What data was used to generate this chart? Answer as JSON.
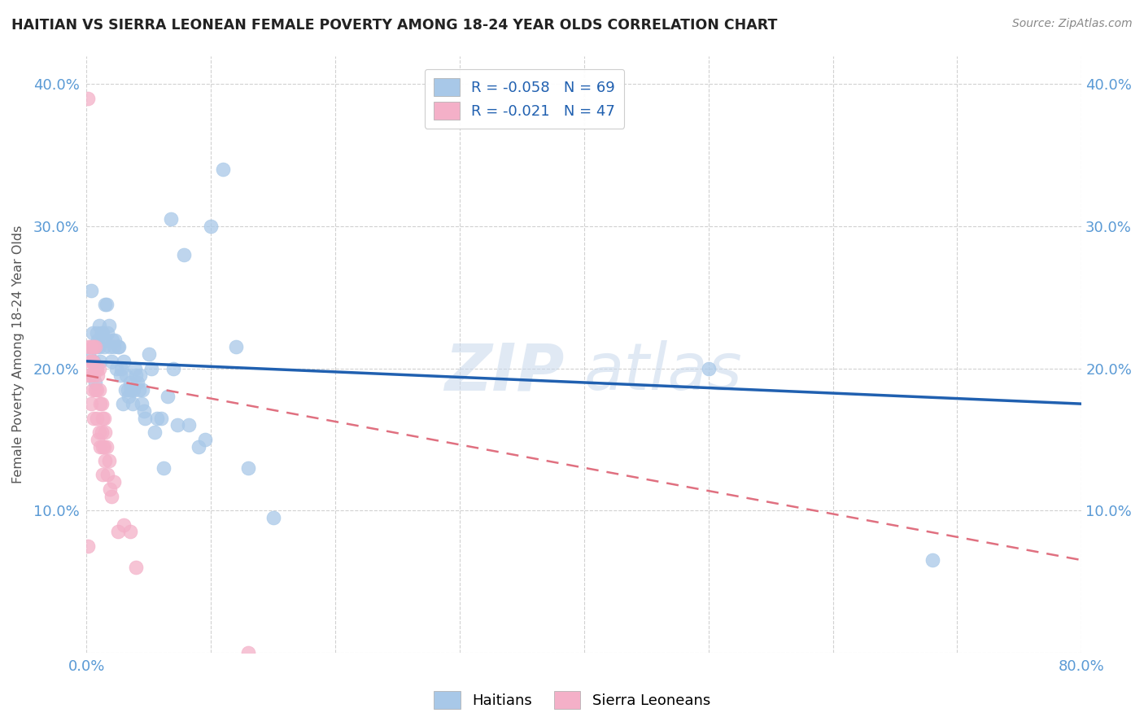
{
  "title": "HAITIAN VS SIERRA LEONEAN FEMALE POVERTY AMONG 18-24 YEAR OLDS CORRELATION CHART",
  "source": "Source: ZipAtlas.com",
  "ylabel": "Female Poverty Among 18-24 Year Olds",
  "xlim": [
    0.0,
    0.8
  ],
  "ylim": [
    0.0,
    0.42
  ],
  "x_ticks": [
    0.0,
    0.1,
    0.2,
    0.3,
    0.4,
    0.5,
    0.6,
    0.7,
    0.8
  ],
  "y_ticks": [
    0.0,
    0.1,
    0.2,
    0.3,
    0.4
  ],
  "watermark_zip": "ZIP",
  "watermark_atlas": "atlas",
  "haitians_color": "#a8c8e8",
  "sierra_color": "#f4b0c8",
  "trendline_blue": "#2060b0",
  "trendline_pink": "#e07080",
  "haitians_x": [
    0.002,
    0.004,
    0.005,
    0.006,
    0.007,
    0.008,
    0.008,
    0.009,
    0.01,
    0.01,
    0.011,
    0.012,
    0.013,
    0.014,
    0.015,
    0.015,
    0.016,
    0.017,
    0.018,
    0.019,
    0.02,
    0.021,
    0.022,
    0.023,
    0.024,
    0.025,
    0.026,
    0.027,
    0.028,
    0.029,
    0.03,
    0.031,
    0.032,
    0.033,
    0.034,
    0.035,
    0.036,
    0.037,
    0.038,
    0.039,
    0.04,
    0.041,
    0.042,
    0.043,
    0.044,
    0.045,
    0.046,
    0.047,
    0.05,
    0.052,
    0.055,
    0.057,
    0.06,
    0.062,
    0.065,
    0.068,
    0.07,
    0.073,
    0.078,
    0.082,
    0.09,
    0.095,
    0.1,
    0.11,
    0.12,
    0.13,
    0.15,
    0.5,
    0.68
  ],
  "haitians_y": [
    0.21,
    0.255,
    0.225,
    0.205,
    0.19,
    0.215,
    0.225,
    0.22,
    0.215,
    0.23,
    0.205,
    0.225,
    0.225,
    0.215,
    0.245,
    0.22,
    0.245,
    0.225,
    0.23,
    0.215,
    0.205,
    0.22,
    0.215,
    0.22,
    0.2,
    0.215,
    0.215,
    0.195,
    0.2,
    0.175,
    0.205,
    0.185,
    0.195,
    0.185,
    0.18,
    0.19,
    0.185,
    0.175,
    0.185,
    0.2,
    0.195,
    0.19,
    0.185,
    0.195,
    0.175,
    0.185,
    0.17,
    0.165,
    0.21,
    0.2,
    0.155,
    0.165,
    0.165,
    0.13,
    0.18,
    0.305,
    0.2,
    0.16,
    0.28,
    0.16,
    0.145,
    0.15,
    0.3,
    0.34,
    0.215,
    0.13,
    0.095,
    0.2,
    0.065
  ],
  "sierra_x": [
    0.001,
    0.001,
    0.002,
    0.002,
    0.003,
    0.003,
    0.003,
    0.004,
    0.004,
    0.005,
    0.005,
    0.005,
    0.006,
    0.006,
    0.006,
    0.007,
    0.007,
    0.008,
    0.008,
    0.008,
    0.009,
    0.009,
    0.01,
    0.01,
    0.01,
    0.011,
    0.011,
    0.012,
    0.012,
    0.013,
    0.013,
    0.013,
    0.014,
    0.014,
    0.015,
    0.015,
    0.016,
    0.017,
    0.018,
    0.019,
    0.02,
    0.022,
    0.025,
    0.03,
    0.035,
    0.04,
    0.13
  ],
  "sierra_y": [
    0.39,
    0.075,
    0.215,
    0.195,
    0.205,
    0.215,
    0.195,
    0.205,
    0.175,
    0.215,
    0.185,
    0.205,
    0.195,
    0.165,
    0.215,
    0.185,
    0.215,
    0.2,
    0.185,
    0.165,
    0.195,
    0.15,
    0.2,
    0.185,
    0.155,
    0.175,
    0.145,
    0.175,
    0.155,
    0.165,
    0.145,
    0.125,
    0.165,
    0.145,
    0.155,
    0.135,
    0.145,
    0.125,
    0.135,
    0.115,
    0.11,
    0.12,
    0.085,
    0.09,
    0.085,
    0.06,
    0.0
  ],
  "blue_trend_x0": 0.0,
  "blue_trend_y0": 0.205,
  "blue_trend_x1": 0.8,
  "blue_trend_y1": 0.175,
  "pink_trend_x0": 0.0,
  "pink_trend_y0": 0.195,
  "pink_trend_x1": 0.8,
  "pink_trend_y1": 0.065
}
